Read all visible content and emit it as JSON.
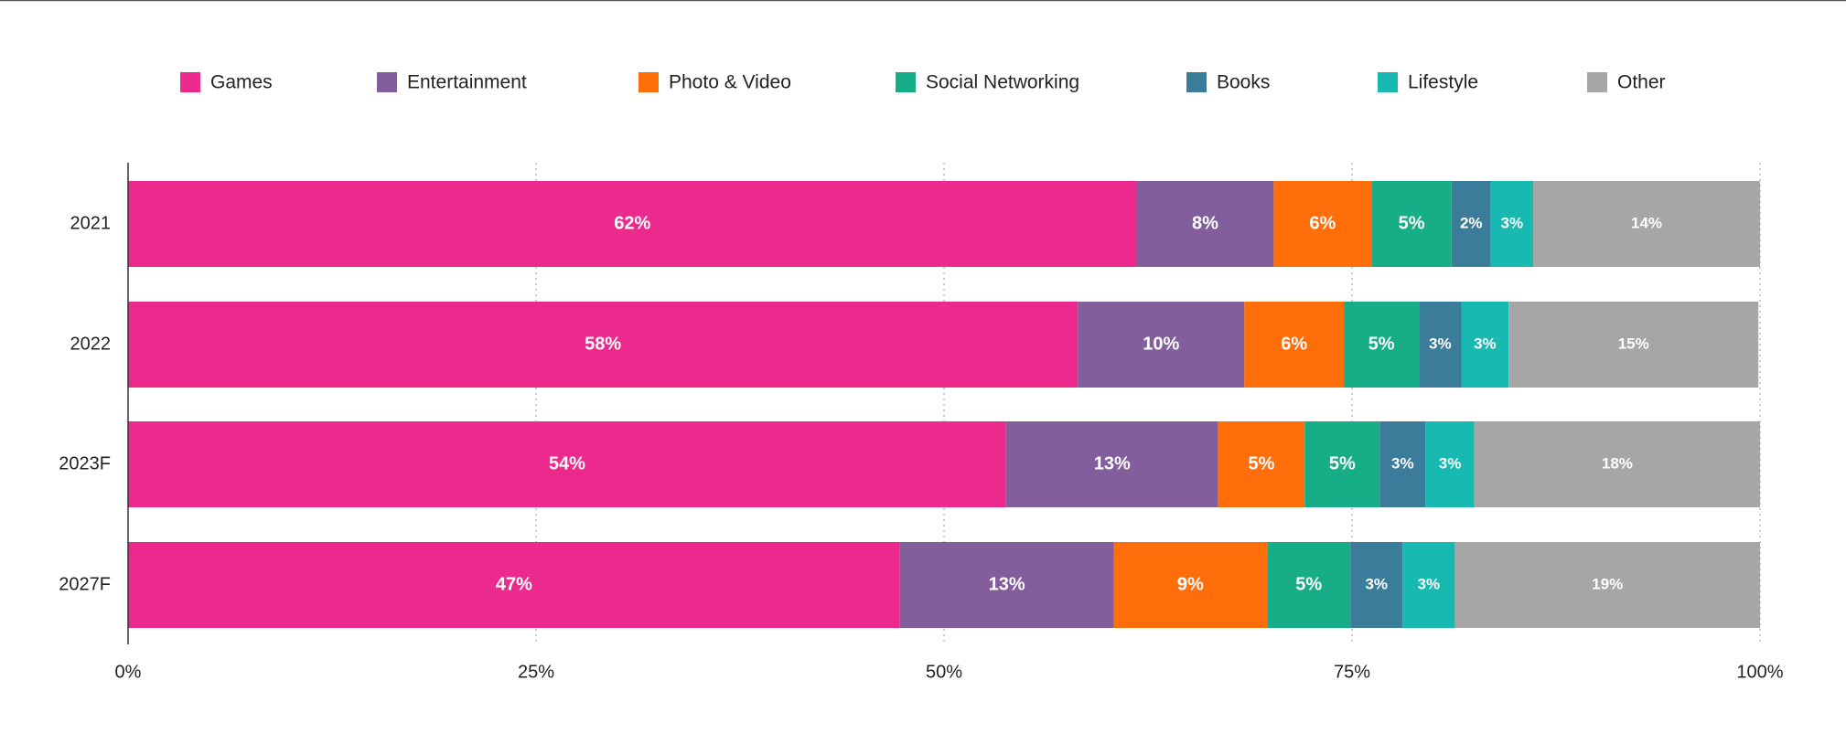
{
  "chart_data": {
    "type": "stacked-bar-horizontal",
    "categories": [
      "2021",
      "2022",
      "2023F",
      "2027F"
    ],
    "series": [
      {
        "name": "Games",
        "color": "#ec2a8e",
        "values": [
          61.8,
          58.2,
          53.8,
          47.3
        ],
        "value_labels": [
          "62%",
          "58%",
          "54%",
          "47%"
        ]
      },
      {
        "name": "Entertainment",
        "color": "#835e9c",
        "values": [
          8.4,
          10.2,
          13.0,
          13.1
        ],
        "value_labels": [
          "8%",
          "10%",
          "13%",
          "13%"
        ]
      },
      {
        "name": "Photo & Video",
        "color": "#ff6e0b",
        "values": [
          6.0,
          6.1,
          5.3,
          9.4
        ],
        "value_labels": [
          "6%",
          "6%",
          "5%",
          "9%"
        ]
      },
      {
        "name": "Social Networking",
        "color": "#17ad86",
        "values": [
          4.9,
          4.6,
          4.6,
          5.1
        ],
        "value_labels": [
          "5%",
          "5%",
          "5%",
          "5%"
        ]
      },
      {
        "name": "Books",
        "color": "#3b7c9a",
        "values": [
          2.4,
          2.6,
          2.8,
          3.2
        ],
        "value_labels": [
          "2%",
          "3%",
          "3%",
          "3%"
        ]
      },
      {
        "name": "Lifestyle",
        "color": "#17b9b1",
        "values": [
          2.6,
          2.9,
          3.0,
          3.2
        ],
        "value_labels": [
          "3%",
          "3%",
          "3%",
          "3%"
        ]
      },
      {
        "name": "Other",
        "color": "#a6a6a6",
        "values": [
          13.9,
          15.3,
          17.5,
          18.7
        ],
        "value_labels": [
          "14%",
          "15%",
          "18%",
          "19%"
        ]
      }
    ],
    "xlim": [
      0,
      100
    ],
    "xticks": [
      {
        "value": 0,
        "label": "0%"
      },
      {
        "value": 25,
        "label": "25%"
      },
      {
        "value": 50,
        "label": "50%"
      },
      {
        "value": 75,
        "label": "75%"
      },
      {
        "value": 100,
        "label": "100%"
      }
    ],
    "grid": true,
    "legend": "top"
  }
}
